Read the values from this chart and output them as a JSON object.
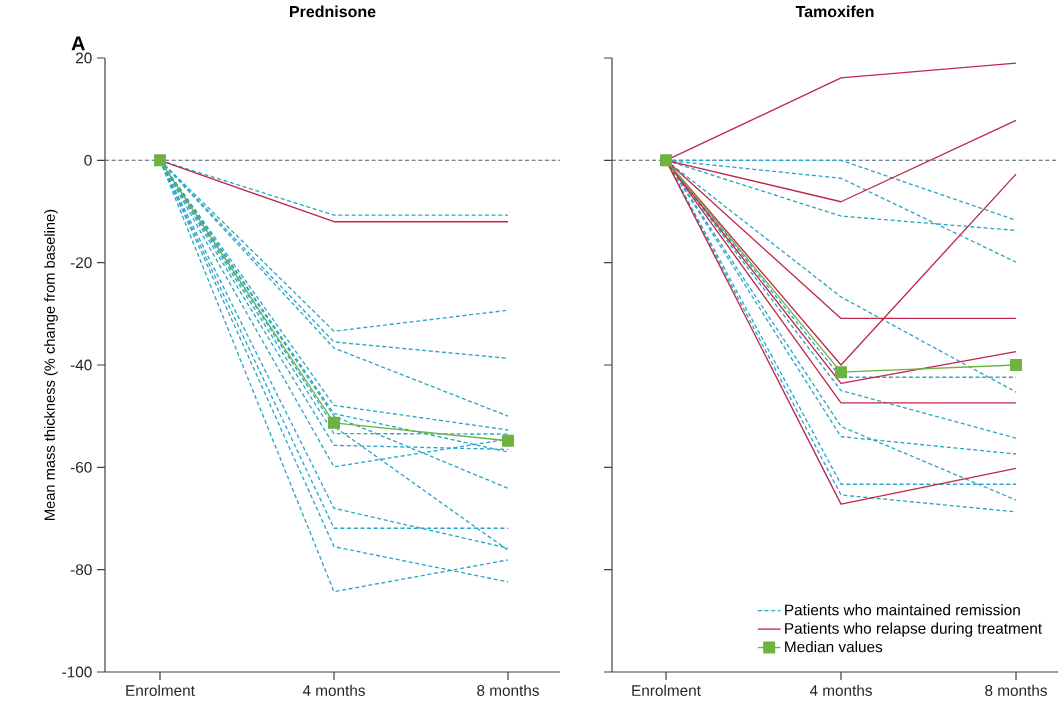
{
  "chart_data": [
    {
      "type": "line",
      "title": "Prednisone",
      "ylabel": "Mean mass thickness (% change from baseline)",
      "annotations": [
        "A"
      ],
      "categories": [
        "Enrolment",
        "4 months",
        "8 months"
      ],
      "ylim": [
        -100,
        20
      ],
      "yticks": [
        -100,
        -80,
        -60,
        -40,
        -20,
        0,
        20
      ],
      "grid": false,
      "legend": false,
      "ref_lines": [
        {
          "axis": "y",
          "value": 0,
          "color": "#4a6070",
          "line_style": "dashed"
        }
      ],
      "series": [
        {
          "color": "#2aa6c8",
          "line_style": "dashed",
          "values": [
            0,
            -10.7,
            -10.7
          ]
        },
        {
          "color": "#2aa6c8",
          "line_style": "dashed",
          "values": [
            0,
            -33.4,
            -29.3
          ]
        },
        {
          "color": "#2aa6c8",
          "line_style": "dashed",
          "values": [
            0,
            -35.5,
            -38.7
          ]
        },
        {
          "color": "#2aa6c8",
          "line_style": "dashed",
          "values": [
            0,
            -36.7,
            -50
          ]
        },
        {
          "color": "#2aa6c8",
          "line_style": "dashed",
          "values": [
            0,
            -47.9,
            -52.7
          ]
        },
        {
          "color": "#2aa6c8",
          "line_style": "dashed",
          "values": [
            0,
            -49.5,
            -57
          ]
        },
        {
          "color": "#2aa6c8",
          "line_style": "dashed",
          "values": [
            0,
            -50,
            -64.1
          ]
        },
        {
          "color": "#2aa6c8",
          "line_style": "dashed",
          "values": [
            0,
            -52,
            -76.2
          ]
        },
        {
          "color": "#2aa6c8",
          "line_style": "dashed",
          "values": [
            0,
            -53.4,
            -53.5
          ]
        },
        {
          "color": "#2aa6c8",
          "line_style": "dashed",
          "values": [
            0,
            -55.7,
            -56.5
          ]
        },
        {
          "color": "#2aa6c8",
          "line_style": "dashed",
          "values": [
            0,
            -59.9,
            -54.5
          ]
        },
        {
          "color": "#2aa6c8",
          "line_style": "dashed",
          "values": [
            0,
            -68,
            -75.8
          ]
        },
        {
          "color": "#2aa6c8",
          "line_style": "dashed",
          "values": [
            0,
            -71.9,
            -71.9
          ]
        },
        {
          "color": "#2aa6c8",
          "line_style": "dashed",
          "values": [
            0,
            -75.5,
            -82.4
          ]
        },
        {
          "color": "#2aa6c8",
          "line_style": "dashed",
          "values": [
            0,
            -84.3,
            -78.1
          ]
        },
        {
          "color": "#c0284a",
          "line_style": "solid",
          "values": [
            0,
            -12,
            -12
          ]
        },
        {
          "color": "#6db33f",
          "line_style": "solid",
          "marker": "square",
          "values": [
            0,
            -51.3,
            -54.8
          ]
        }
      ]
    },
    {
      "type": "line",
      "title": "Tamoxifen",
      "tick_labels": "x",
      "categories": [
        "Enrolment",
        "4 months",
        "8 months"
      ],
      "ylim": [
        -100,
        20
      ],
      "yticks": [
        -100,
        -80,
        -60,
        -40,
        -20,
        0,
        20
      ],
      "grid": false,
      "legend": "bottom right",
      "ref_lines": [
        {
          "axis": "y",
          "value": 0,
          "color": "#4a6070",
          "line_style": "dashed"
        }
      ],
      "series": [
        {
          "name": "Patients who maintained remission",
          "color": "#2aa6c8",
          "line_style": "dashed",
          "values": [
            0,
            0,
            -11.7
          ]
        },
        {
          "color": "#2aa6c8",
          "line_style": "dashed",
          "values": [
            0,
            -3.5,
            -19.9
          ]
        },
        {
          "color": "#2aa6c8",
          "line_style": "dashed",
          "values": [
            0,
            -10.9,
            -13.7
          ]
        },
        {
          "color": "#2aa6c8",
          "line_style": "dashed",
          "values": [
            0,
            -26.7,
            -45.3
          ]
        },
        {
          "color": "#2aa6c8",
          "line_style": "dashed",
          "values": [
            0,
            -42.4,
            -42.4
          ]
        },
        {
          "color": "#2aa6c8",
          "line_style": "dashed",
          "values": [
            0,
            -45,
            -54.3
          ]
        },
        {
          "color": "#2aa6c8",
          "line_style": "dashed",
          "values": [
            0,
            -54,
            -57.4
          ]
        },
        {
          "color": "#2aa6c8",
          "line_style": "dashed",
          "values": [
            0,
            -52,
            -66.4
          ]
        },
        {
          "color": "#2aa6c8",
          "line_style": "dashed",
          "values": [
            0,
            -63.3,
            -63.3
          ]
        },
        {
          "color": "#2aa6c8",
          "line_style": "dashed",
          "values": [
            0,
            -65.4,
            -68.7
          ]
        },
        {
          "name": "Patients who relapse during treatment",
          "color": "#c0284a",
          "line_style": "solid",
          "values": [
            0,
            16.1,
            19
          ]
        },
        {
          "color": "#c0284a",
          "line_style": "solid",
          "values": [
            0,
            -8.1,
            7.8
          ]
        },
        {
          "color": "#c0284a",
          "line_style": "solid",
          "values": [
            0,
            -30.9,
            -30.9
          ]
        },
        {
          "color": "#c0284a",
          "line_style": "solid",
          "values": [
            0,
            -40,
            -2.7
          ]
        },
        {
          "color": "#c0284a",
          "line_style": "solid",
          "values": [
            0,
            -43.6,
            -37.4
          ]
        },
        {
          "color": "#c0284a",
          "line_style": "solid",
          "values": [
            0,
            -47.4,
            -47.4
          ]
        },
        {
          "color": "#c0284a",
          "line_style": "solid",
          "values": [
            0,
            -67.2,
            -60.2
          ]
        },
        {
          "name": "Median values",
          "color": "#6db33f",
          "line_style": "solid",
          "marker": "square",
          "values": [
            0,
            -41.4,
            -40
          ]
        }
      ]
    }
  ]
}
